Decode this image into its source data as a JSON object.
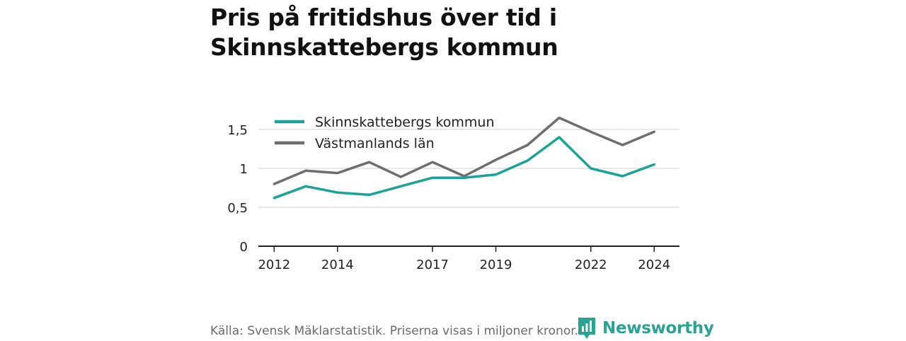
{
  "title": "Pris på fritidshus över tid i Skinnskattebergs kommun",
  "footer": {
    "source": "Källa: Svensk Mäklarstatistik. Priserna visas i miljoner kronor.",
    "brand": "Newsworthy"
  },
  "colors": {
    "series_1": "#1aa396",
    "series_2": "#6e6e70",
    "grid": "#d9d9d9",
    "axis": "#222222",
    "brand": "#2aa394"
  },
  "chart_data": {
    "type": "line",
    "title": "Pris på fritidshus över tid i Skinnskattebergs kommun",
    "xlabel": "",
    "ylabel": "",
    "x": [
      2012,
      2013,
      2014,
      2015,
      2016,
      2017,
      2018,
      2019,
      2020,
      2021,
      2022,
      2023,
      2024
    ],
    "x_ticks": [
      2012,
      2014,
      2017,
      2019,
      2022,
      2024
    ],
    "y_ticks": [
      0,
      0.5,
      1,
      1.5
    ],
    "y_tick_labels": [
      "0",
      "0,5",
      "1",
      "1,5"
    ],
    "ylim": [
      0,
      1.5
    ],
    "grid": true,
    "legend_position": "top-left",
    "series": [
      {
        "name": "Skinnskattebergs kommun",
        "values": [
          0.62,
          0.77,
          0.69,
          0.66,
          0.77,
          0.88,
          0.88,
          0.92,
          1.1,
          1.4,
          1.0,
          0.9,
          1.05
        ]
      },
      {
        "name": "Västmanlands län",
        "values": [
          0.8,
          0.97,
          0.94,
          1.08,
          0.89,
          1.08,
          0.9,
          1.11,
          1.3,
          1.65,
          1.47,
          1.3,
          1.47
        ]
      }
    ]
  }
}
